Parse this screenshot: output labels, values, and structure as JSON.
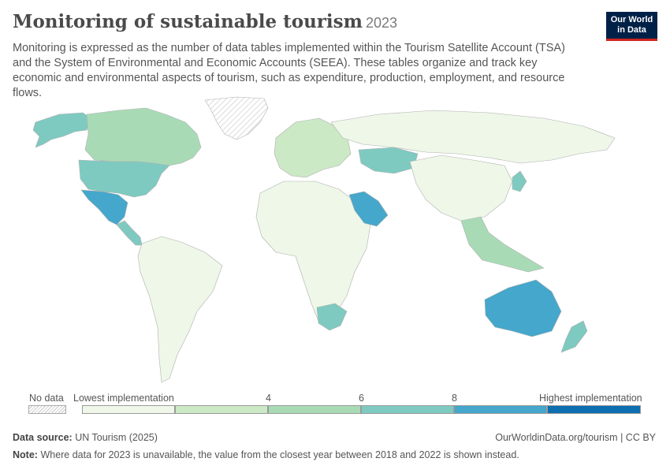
{
  "header": {
    "title": "Monitoring of sustainable tourism",
    "year": "2023",
    "subtitle": "Monitoring is expressed as the number of data tables implemented within the Tourism Satellite Account (TSA) and the System of Environmental and Economic Accounts (SEEA). These tables organize and track key economic and environmental aspects of tourism, such as expenditure, production, employment, and resource flows."
  },
  "logo": {
    "line1": "Our World",
    "line2": "in Data"
  },
  "colors": {
    "bins": [
      "#eef7e8",
      "#cbe9c5",
      "#a8dbb5",
      "#7ecac1",
      "#44a7cb",
      "#0d6fb0"
    ],
    "no_data_hatch": "#c8c8c8",
    "border": "#b0b0b0"
  },
  "map": {
    "regions": [
      {
        "name": "Canada",
        "bin": 2
      },
      {
        "name": "Alaska (United States)",
        "bin": 3
      },
      {
        "name": "United States",
        "bin": 3
      },
      {
        "name": "Greenland",
        "bin": -1
      },
      {
        "name": "Mexico",
        "bin": 4
      },
      {
        "name": "Central America",
        "bin": 3
      },
      {
        "name": "South America",
        "bin": 0
      },
      {
        "name": "Europe",
        "bin": 1
      },
      {
        "name": "Africa",
        "bin": 0
      },
      {
        "name": "South Africa",
        "bin": 3
      },
      {
        "name": "Saudi Arabia",
        "bin": 4
      },
      {
        "name": "Kazakhstan",
        "bin": 3
      },
      {
        "name": "Russia",
        "bin": 0
      },
      {
        "name": "China",
        "bin": 0
      },
      {
        "name": "Japan",
        "bin": 3
      },
      {
        "name": "Southeast Asia",
        "bin": 2
      },
      {
        "name": "Australia",
        "bin": 4
      },
      {
        "name": "New Zealand",
        "bin": 3
      }
    ]
  },
  "legend": {
    "no_data_label": "No data",
    "lowest_label": "Lowest implementation",
    "highest_label": "Highest implementation",
    "ticks": [
      "4",
      "6",
      "8"
    ]
  },
  "footer": {
    "source_label": "Data source:",
    "source_value": "UN Tourism (2025)",
    "url": "OurWorldinData.org/tourism | CC BY",
    "note_label": "Note:",
    "note_value": "Where data for 2023 is unavailable, the value from the closest year between 2018 and 2022 is shown instead."
  }
}
